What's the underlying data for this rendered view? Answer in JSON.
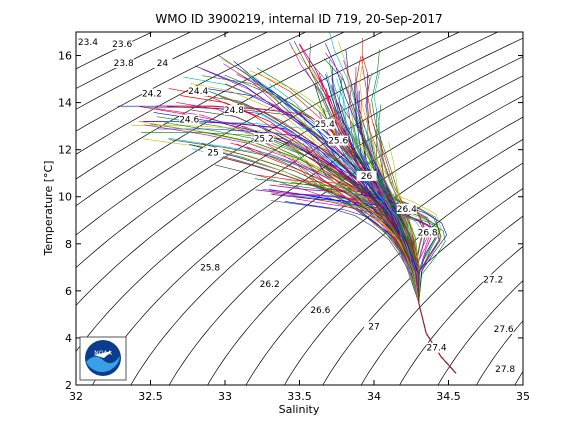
{
  "chart_data": {
    "type": "line",
    "title": "WMO ID 3900219, internal ID 719, 20-Sep-2017",
    "xlabel": "Salinity",
    "ylabel": "Temperature [°C]",
    "xlim": [
      32,
      35
    ],
    "ylim": [
      2,
      17
    ],
    "xticks": [
      "32",
      "32.5",
      "33",
      "33.5",
      "34",
      "34.5",
      "35"
    ],
    "yticks": [
      "2",
      "4",
      "6",
      "8",
      "10",
      "12",
      "14",
      "16"
    ],
    "grid": false,
    "legend": "none",
    "profile_color_cycle": [
      "#0000ff",
      "#008000",
      "#ff0000",
      "#00bfbf",
      "#bf00bf",
      "#bfbf00",
      "#404040"
    ],
    "density_contours": [
      {
        "label": "23.4",
        "x": 32.08,
        "y": 16.5
      },
      {
        "label": "23.6",
        "x": 32.31,
        "y": 16.4
      },
      {
        "label": "23.8",
        "x": 32.32,
        "y": 15.6
      },
      {
        "label": "24",
        "x": 32.58,
        "y": 15.6
      },
      {
        "label": "24.2",
        "x": 32.51,
        "y": 14.3
      },
      {
        "label": "24.4",
        "x": 32.82,
        "y": 14.4
      },
      {
        "label": "24.6",
        "x": 32.76,
        "y": 13.2
      },
      {
        "label": "24.8",
        "x": 33.06,
        "y": 13.6
      },
      {
        "label": "25",
        "x": 32.92,
        "y": 11.8
      },
      {
        "label": "25.2",
        "x": 33.26,
        "y": 12.4
      },
      {
        "label": "25.4",
        "x": 33.67,
        "y": 13.0
      },
      {
        "label": "25.6",
        "x": 33.76,
        "y": 12.3
      },
      {
        "label": "25.8",
        "x": 32.9,
        "y": 6.9
      },
      {
        "label": "26",
        "x": 33.95,
        "y": 10.8
      },
      {
        "label": "26.2",
        "x": 33.3,
        "y": 6.2
      },
      {
        "label": "26.4",
        "x": 34.22,
        "y": 9.4
      },
      {
        "label": "26.6",
        "x": 33.64,
        "y": 5.1
      },
      {
        "label": "26.8",
        "x": 34.36,
        "y": 8.4
      },
      {
        "label": "27",
        "x": 34.0,
        "y": 4.4
      },
      {
        "label": "27.2",
        "x": 34.8,
        "y": 6.4
      },
      {
        "label": "27.4",
        "x": 34.42,
        "y": 3.5
      },
      {
        "label": "27.6",
        "x": 34.87,
        "y": 4.3
      },
      {
        "label": "27.8",
        "x": 34.88,
        "y": 2.6
      }
    ],
    "profiles": [
      {
        "x": [
          32.45,
          32.8,
          33.1,
          33.4,
          33.6,
          33.8,
          34.0,
          34.15,
          34.25,
          34.3,
          34.35,
          34.45,
          34.55
        ],
        "y": [
          13.2,
          13.2,
          13.1,
          12.9,
          12.2,
          11.0,
          9.8,
          8.4,
          7.0,
          5.5,
          4.2,
          3.2,
          2.5
        ]
      },
      {
        "x": [
          32.5,
          32.9,
          33.2,
          33.5,
          33.7,
          33.9,
          34.05,
          34.2,
          34.28,
          34.3,
          34.35,
          34.45,
          34.55
        ],
        "y": [
          13.1,
          12.7,
          12.3,
          11.6,
          10.9,
          10.1,
          9.2,
          8.1,
          6.8,
          5.5,
          4.2,
          3.2,
          2.5
        ]
      },
      {
        "x": [
          32.7,
          33.0,
          33.3,
          33.55,
          33.75,
          33.95,
          34.1,
          34.2,
          34.28,
          34.3,
          34.35,
          34.45,
          34.55
        ],
        "y": [
          14.3,
          14.0,
          13.2,
          12.1,
          11.2,
          10.3,
          9.3,
          8.2,
          6.9,
          5.5,
          4.2,
          3.2,
          2.5
        ]
      },
      {
        "x": [
          33.1,
          33.3,
          33.5,
          33.65,
          33.8,
          33.95,
          34.1,
          34.2,
          34.28,
          34.3,
          34.35,
          34.45,
          34.55
        ],
        "y": [
          15.4,
          14.6,
          13.5,
          12.6,
          11.5,
          10.4,
          9.3,
          8.1,
          6.8,
          5.5,
          4.2,
          3.2,
          2.5
        ]
      },
      {
        "x": [
          33.5,
          33.6,
          33.7,
          33.78,
          33.88,
          34.0,
          34.12,
          34.22,
          34.28,
          34.3,
          34.35,
          34.45,
          34.55
        ],
        "y": [
          16.5,
          15.5,
          14.2,
          13.0,
          11.8,
          10.5,
          9.3,
          8.1,
          6.8,
          5.5,
          4.2,
          3.2,
          2.5
        ]
      },
      {
        "x": [
          33.82,
          33.83,
          33.85,
          33.88,
          33.95,
          34.02,
          34.12,
          34.22,
          34.28,
          34.3,
          34.35,
          34.45,
          34.55
        ],
        "y": [
          15.5,
          14.5,
          13.5,
          12.5,
          11.5,
          10.5,
          9.3,
          8.1,
          6.8,
          5.5,
          4.2,
          3.2,
          2.5
        ]
      },
      {
        "x": [
          32.9,
          33.2,
          33.5,
          33.7,
          33.85,
          34.0,
          34.12,
          34.22,
          34.28,
          34.3,
          34.35,
          34.45,
          34.55
        ],
        "y": [
          11.8,
          11.3,
          10.7,
          10.2,
          9.8,
          9.3,
          8.8,
          8.0,
          6.8,
          5.5,
          4.2,
          3.2,
          2.5
        ]
      },
      {
        "x": [
          33.4,
          33.6,
          33.8,
          33.95,
          34.05,
          34.15,
          34.22,
          34.28,
          34.3,
          34.35,
          34.45,
          34.55
        ],
        "y": [
          10.2,
          10.0,
          9.8,
          9.5,
          9.0,
          8.4,
          7.6,
          6.7,
          5.5,
          4.2,
          3.2,
          2.5
        ]
      },
      {
        "x": [
          33.6,
          33.65,
          33.72,
          33.8,
          33.92,
          34.05,
          34.15,
          34.22,
          34.28,
          34.3,
          34.35,
          34.45,
          34.55
        ],
        "y": [
          14.8,
          13.8,
          12.8,
          11.8,
          10.8,
          9.8,
          8.9,
          7.9,
          6.8,
          5.5,
          4.2,
          3.2,
          2.5
        ]
      },
      {
        "x": [
          33.0,
          33.3,
          33.55,
          33.75,
          33.92,
          34.05,
          34.15,
          34.22,
          34.28,
          34.3,
          34.35,
          34.45,
          34.55
        ],
        "y": [
          14.8,
          14.0,
          13.0,
          12.0,
          11.0,
          10.0,
          9.0,
          8.0,
          6.8,
          5.5,
          4.2,
          3.2,
          2.5
        ]
      },
      {
        "x": [
          33.7,
          33.73,
          33.78,
          33.85,
          33.95,
          34.05,
          34.15,
          34.22,
          34.28,
          34.3,
          34.35,
          34.45,
          34.55
        ],
        "y": [
          15.8,
          14.8,
          13.8,
          12.5,
          11.2,
          10.0,
          9.0,
          8.0,
          6.8,
          5.5,
          4.2,
          3.2,
          2.5
        ]
      },
      {
        "x": [
          33.3,
          33.55,
          33.8,
          34.0,
          34.2,
          34.35,
          34.4,
          34.35,
          34.3,
          34.3,
          34.35,
          34.45,
          34.55
        ],
        "y": [
          10.5,
          10.3,
          10.2,
          10.0,
          9.6,
          9.1,
          8.5,
          7.8,
          6.8,
          5.5,
          4.2,
          3.2,
          2.5
        ]
      },
      {
        "x": [
          33.75,
          33.8,
          33.85,
          33.9,
          33.95,
          34.02,
          34.1,
          34.18,
          34.25,
          34.3,
          34.35,
          34.45,
          34.55
        ],
        "y": [
          14.0,
          13.2,
          12.5,
          11.8,
          11.0,
          10.2,
          9.3,
          8.3,
          7.0,
          5.5,
          4.2,
          3.2,
          2.5
        ]
      },
      {
        "x": [
          33.2,
          33.45,
          33.7,
          33.9,
          34.05,
          34.15,
          34.22,
          34.28,
          34.3,
          34.35,
          34.45,
          34.55
        ],
        "y": [
          12.5,
          11.8,
          11.0,
          10.3,
          9.6,
          8.8,
          7.9,
          6.8,
          5.5,
          4.2,
          3.2,
          2.5
        ]
      },
      {
        "x": [
          33.9,
          33.9,
          33.92,
          33.95,
          34.0,
          34.08,
          34.15,
          34.22,
          34.28,
          34.3,
          34.35,
          34.45,
          34.55
        ],
        "y": [
          14.5,
          13.5,
          12.5,
          11.5,
          10.6,
          9.7,
          8.8,
          7.8,
          6.8,
          5.5,
          4.2,
          3.2,
          2.5
        ]
      },
      {
        "x": [
          33.85,
          34.0,
          34.15,
          34.3,
          34.42,
          34.45,
          34.38,
          34.3,
          34.3,
          34.35,
          34.45,
          34.55
        ],
        "y": [
          10.0,
          9.8,
          9.5,
          9.2,
          8.8,
          8.3,
          7.6,
          6.8,
          5.5,
          4.2,
          3.2,
          2.5
        ]
      },
      {
        "x": [
          33.55,
          33.65,
          33.8,
          33.95,
          34.08,
          34.18,
          34.25,
          34.28,
          34.3,
          34.35,
          34.45,
          34.55
        ],
        "y": [
          12.0,
          11.2,
          10.4,
          9.7,
          9.0,
          8.2,
          7.4,
          6.6,
          5.5,
          4.2,
          3.2,
          2.5
        ]
      },
      {
        "x": [
          33.95,
          34.0,
          34.05,
          34.12,
          34.18,
          34.22,
          34.26,
          34.28,
          34.3,
          34.35,
          34.45,
          34.55
        ],
        "y": [
          12.8,
          11.8,
          10.8,
          9.8,
          8.9,
          8.1,
          7.3,
          6.5,
          5.5,
          4.2,
          3.2,
          2.5
        ]
      }
    ]
  }
}
